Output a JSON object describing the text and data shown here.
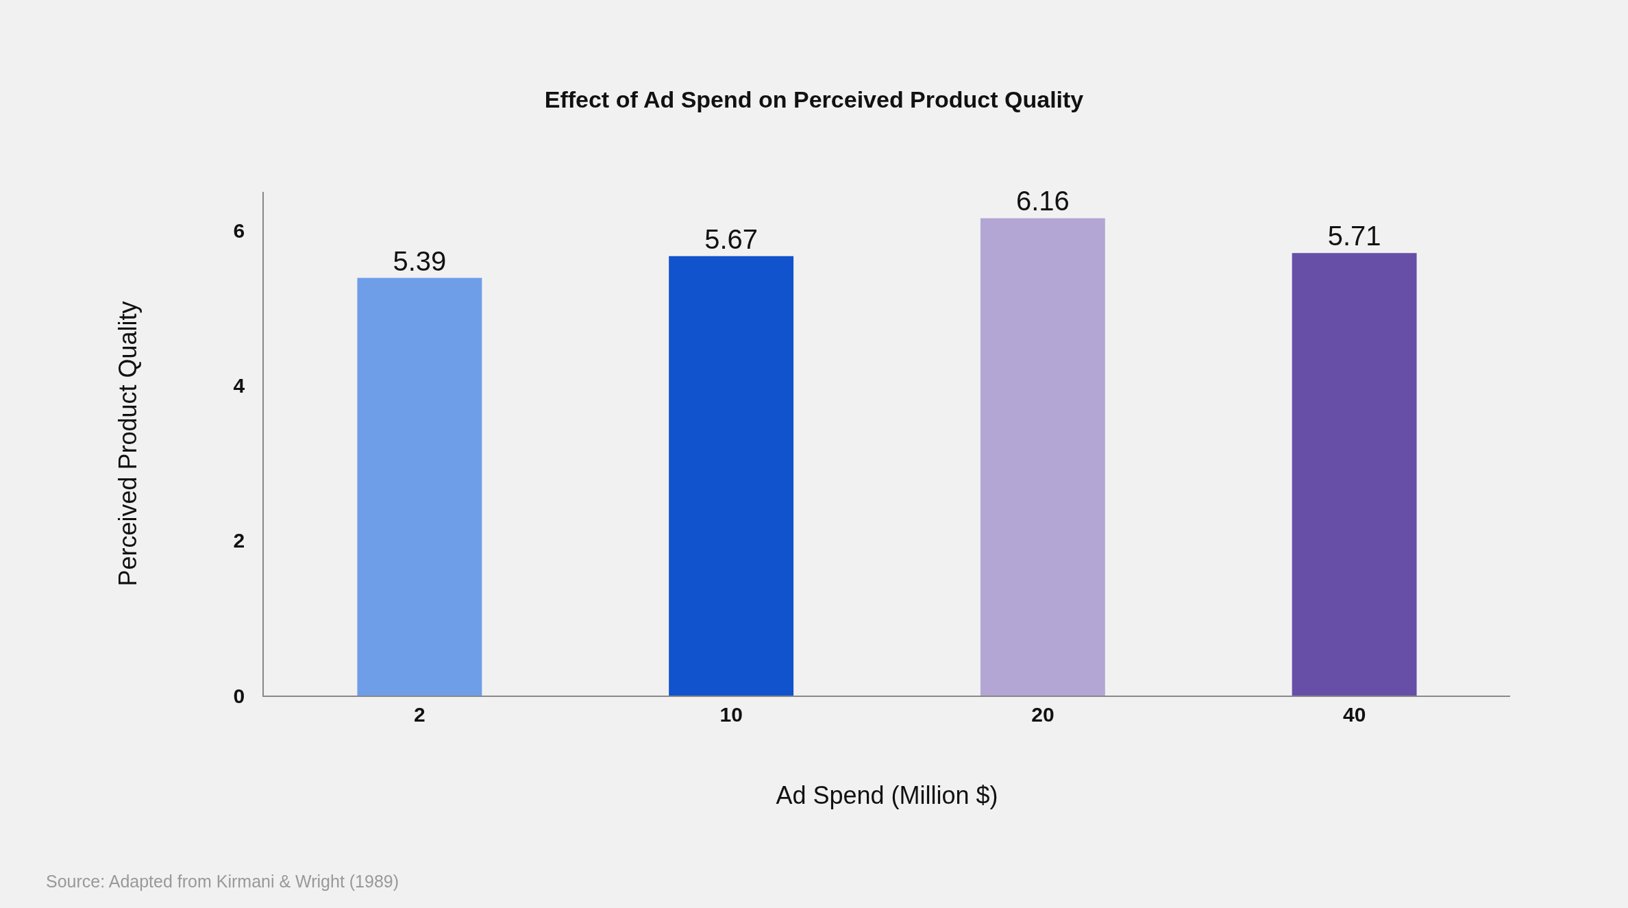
{
  "chart_data": {
    "type": "bar",
    "title": "Effect of Ad Spend on Perceived Product Quality",
    "xlabel": "Ad Spend (Million $)",
    "ylabel": "Perceived Product Quality",
    "categories": [
      "2",
      "10",
      "20",
      "40"
    ],
    "values": [
      5.39,
      5.67,
      6.16,
      5.71
    ],
    "colors": [
      "#6f9ee9",
      "#1053cc",
      "#b3a6d4",
      "#674ea7"
    ],
    "ylim": [
      0,
      6.5
    ],
    "yticks": [
      0,
      2,
      4,
      6
    ],
    "grid": false,
    "legend": false,
    "data_labels": true,
    "annotations": [
      "Source: Adapted from Kirmani & Wright (1989)"
    ]
  }
}
